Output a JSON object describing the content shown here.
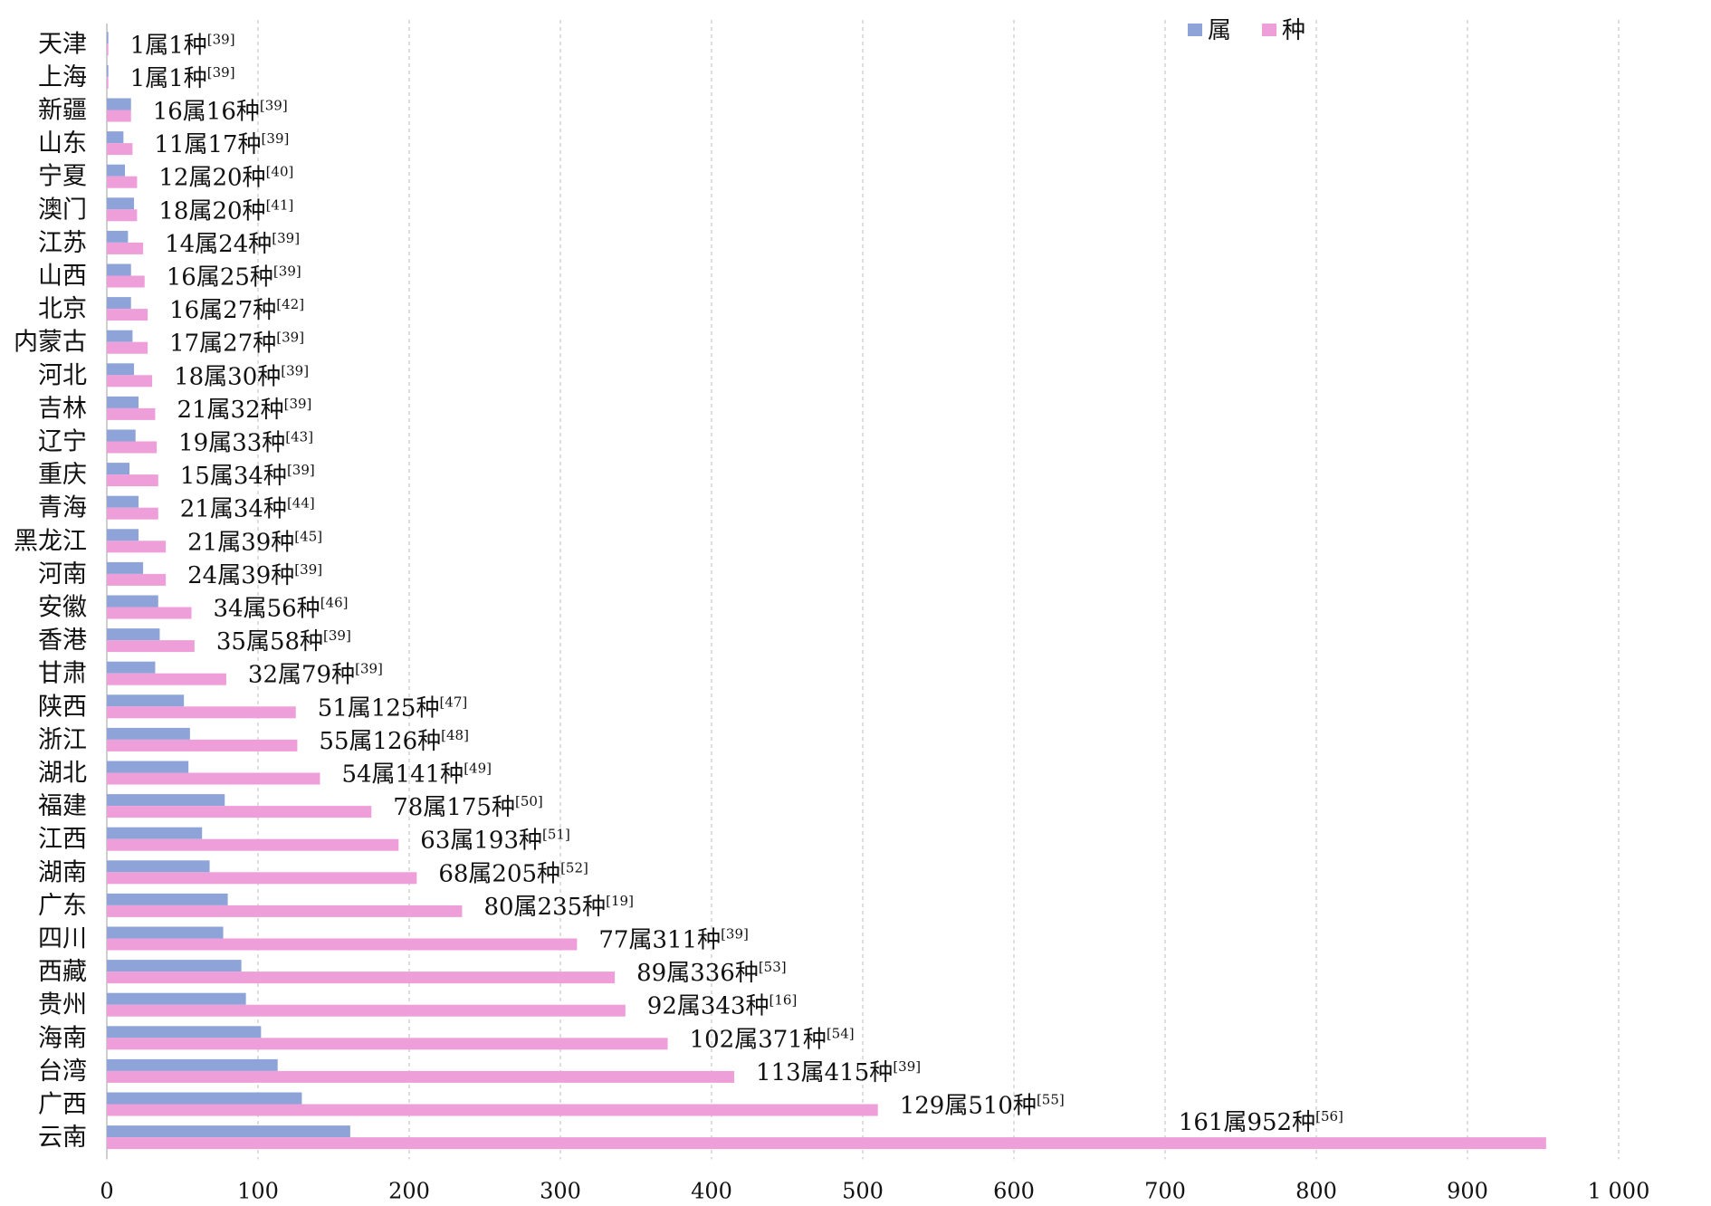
{
  "chart_data": {
    "type": "bar",
    "orientation": "horizontal",
    "categories": [
      "天津",
      "上海",
      "新疆",
      "山东",
      "宁夏",
      "澳门",
      "江苏",
      "山西",
      "北京",
      "内蒙古",
      "河北",
      "吉林",
      "辽宁",
      "重庆",
      "青海",
      "黑龙江",
      "河南",
      "安徽",
      "香港",
      "甘肃",
      "陕西",
      "浙江",
      "湖北",
      "福建",
      "江西",
      "湖南",
      "广东",
      "四川",
      "西藏",
      "贵州",
      "海南",
      "台湾",
      "广西",
      "云南"
    ],
    "series": [
      {
        "name": "属",
        "color": "#8EA4D8",
        "values": [
          1,
          1,
          16,
          11,
          12,
          18,
          14,
          16,
          16,
          17,
          18,
          21,
          19,
          15,
          21,
          21,
          24,
          34,
          35,
          32,
          51,
          55,
          54,
          78,
          63,
          68,
          80,
          77,
          89,
          92,
          102,
          113,
          129,
          161
        ]
      },
      {
        "name": "种",
        "color": "#EE9ED9",
        "values": [
          1,
          1,
          16,
          17,
          20,
          20,
          24,
          25,
          27,
          27,
          30,
          32,
          33,
          34,
          34,
          39,
          39,
          56,
          58,
          79,
          125,
          126,
          141,
          175,
          193,
          205,
          235,
          311,
          336,
          343,
          371,
          415,
          510,
          952
        ]
      }
    ],
    "data_labels": [
      {
        "text": "1属1种",
        "ref": "[39]"
      },
      {
        "text": "1属1种",
        "ref": "[39]"
      },
      {
        "text": "16属16种",
        "ref": "[39]"
      },
      {
        "text": "11属17种",
        "ref": "[39]"
      },
      {
        "text": "12属20种",
        "ref": "[40]"
      },
      {
        "text": "18属20种",
        "ref": "[41]"
      },
      {
        "text": "14属24种",
        "ref": "[39]"
      },
      {
        "text": "16属25种",
        "ref": "[39]"
      },
      {
        "text": "16属27种",
        "ref": "[42]"
      },
      {
        "text": "17属27种",
        "ref": "[39]"
      },
      {
        "text": "18属30种",
        "ref": "[39]"
      },
      {
        "text": "21属32种",
        "ref": "[39]"
      },
      {
        "text": "19属33种",
        "ref": "[43]"
      },
      {
        "text": "15属34种",
        "ref": "[39]"
      },
      {
        "text": "21属34种",
        "ref": "[44]"
      },
      {
        "text": "21属39种",
        "ref": "[45]"
      },
      {
        "text": "24属39种",
        "ref": "[39]"
      },
      {
        "text": "34属56种",
        "ref": "[46]"
      },
      {
        "text": "35属58种",
        "ref": "[39]"
      },
      {
        "text": "32属79种",
        "ref": "[39]"
      },
      {
        "text": "51属125种",
        "ref": "[47]"
      },
      {
        "text": "55属126种",
        "ref": "[48]"
      },
      {
        "text": "54属141种",
        "ref": "[49]"
      },
      {
        "text": "78属175种",
        "ref": "[50]"
      },
      {
        "text": "63属193种",
        "ref": "[51]"
      },
      {
        "text": "68属205种",
        "ref": "[52]"
      },
      {
        "text": "80属235种",
        "ref": "[19]"
      },
      {
        "text": "77属311种",
        "ref": "[39]"
      },
      {
        "text": "89属336种",
        "ref": "[53]"
      },
      {
        "text": "92属343种",
        "ref": "[16]"
      },
      {
        "text": "102属371种",
        "ref": "[54]"
      },
      {
        "text": "113属415种",
        "ref": "[39]"
      },
      {
        "text": "129属510种",
        "ref": "[55]"
      },
      {
        "text": "161属952种",
        "ref": "[56]"
      }
    ],
    "x_ticks": [
      "0",
      "100",
      "200",
      "300",
      "400",
      "500",
      "600",
      "700",
      "800",
      "900",
      "1 000"
    ],
    "xlim": [
      0,
      1000
    ],
    "grid": "vertical dashed",
    "legend": "top-right"
  }
}
